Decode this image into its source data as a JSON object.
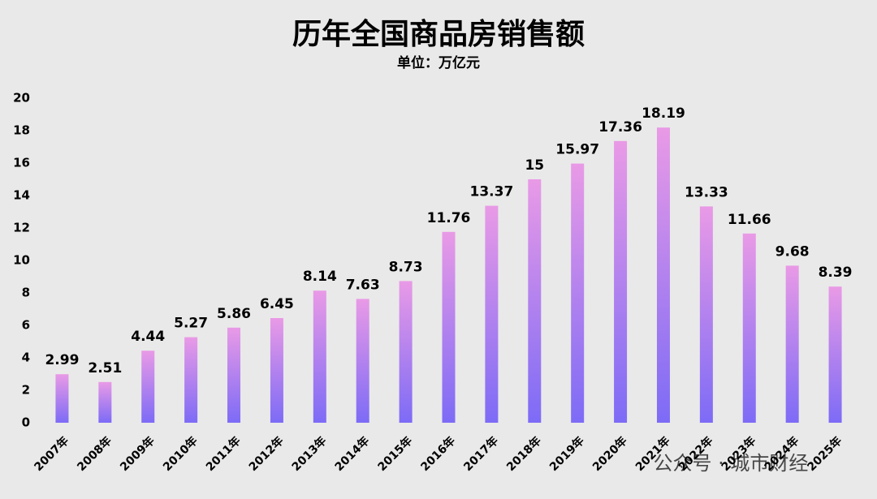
{
  "chart_data": {
    "type": "bar",
    "title": "历年全国商品房销售额",
    "subtitle": "单位：万亿元",
    "categories": [
      "2007年",
      "2008年",
      "2009年",
      "2010年",
      "2011年",
      "2012年",
      "2013年",
      "2014年",
      "2015年",
      "2016年",
      "2017年",
      "2018年",
      "2019年",
      "2020年",
      "2021年",
      "2022年",
      "2023年",
      "2024年",
      "2025年"
    ],
    "values": [
      2.99,
      2.51,
      4.44,
      5.27,
      5.86,
      6.45,
      8.14,
      7.63,
      8.73,
      11.76,
      13.37,
      15,
      15.97,
      17.36,
      18.19,
      13.33,
      11.66,
      9.68,
      8.39
    ],
    "colors": [
      "#e99ae6",
      "#7d6bf6"
    ],
    "ylim": [
      0,
      20
    ],
    "yticks": [
      0,
      2,
      4,
      6,
      8,
      10,
      12,
      14,
      16,
      18,
      20
    ],
    "grid": false,
    "watermark": "公众号 · 城市财经"
  }
}
